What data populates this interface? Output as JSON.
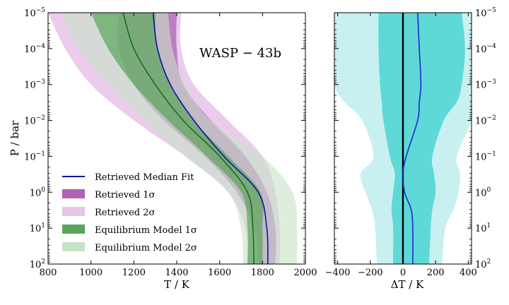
{
  "chart_data": [
    {
      "type": "area",
      "annotation": "WASP − 43b",
      "xlabel": "T / K",
      "ylabel": "P / bar",
      "xlim": [
        800,
        2000
      ],
      "ylim": [
        100,
        1e-05
      ],
      "y_scale": "log",
      "x_ticks": [
        "800",
        "1000",
        "1200",
        "1400",
        "1600",
        "1800",
        "2000"
      ],
      "y_ticks": [
        {
          "base": "10",
          "exp": "−5"
        },
        {
          "base": "10",
          "exp": "−4"
        },
        {
          "base": "10",
          "exp": "−3"
        },
        {
          "base": "10",
          "exp": "−2"
        },
        {
          "base": "10",
          "exp": "−1"
        },
        {
          "base": "10",
          "exp": "0"
        },
        {
          "base": "10",
          "exp": "1"
        },
        {
          "base": "10",
          "exp": "2"
        }
      ],
      "legend_position": "lower-left",
      "pressure": [
        1e-05,
        0.0001,
        0.001,
        0.01,
        0.1,
        1,
        10,
        100
      ],
      "series": [
        {
          "name": "Retrieved Median Fit",
          "kind": "line",
          "color": "#0b14a8",
          "values": [
            1290,
            1310,
            1370,
            1480,
            1620,
            1780,
            1820,
            1825
          ]
        },
        {
          "name": "Equilibrium Model median",
          "kind": "line",
          "color": "#1a6b1a",
          "values": [
            1150,
            1200,
            1300,
            1430,
            1600,
            1730,
            1755,
            1760
          ]
        },
        {
          "name": "Retrieved 1σ",
          "kind": "band",
          "color": "#b063b4",
          "low": [
            1130,
            1130,
            1200,
            1340,
            1530,
            1680,
            1760,
            1780
          ],
          "high": [
            1400,
            1400,
            1430,
            1560,
            1720,
            1820,
            1860,
            1860
          ]
        },
        {
          "name": "Retrieved 2σ",
          "kind": "band",
          "color": "#e8c3ea",
          "low": [
            800,
            880,
            1000,
            1200,
            1440,
            1640,
            1720,
            1730
          ],
          "high": [
            1420,
            1420,
            1480,
            1640,
            1800,
            1860,
            1880,
            1880
          ]
        },
        {
          "name": "Equilibrium Model 1σ",
          "kind": "band",
          "color": "#5aa55a",
          "low": [
            1000,
            1080,
            1200,
            1360,
            1540,
            1700,
            1730,
            1730
          ],
          "high": [
            1300,
            1310,
            1370,
            1480,
            1640,
            1790,
            1800,
            1800
          ]
        },
        {
          "name": "Equilibrium Model 2σ",
          "kind": "band",
          "color": "#c6e3c6",
          "low": [
            860,
            940,
            1080,
            1250,
            1440,
            1640,
            1700,
            1710
          ],
          "high": [
            1360,
            1380,
            1440,
            1560,
            1800,
            1940,
            1960,
            1960
          ]
        }
      ],
      "legend": [
        {
          "label": "Retrieved Median Fit",
          "kind": "line",
          "color": "#0b14a8"
        },
        {
          "label": "Retrieved 1σ",
          "kind": "patch",
          "color": "#b063b4"
        },
        {
          "label": "Retrieved 2σ",
          "kind": "patch",
          "color": "#e8c3ea"
        },
        {
          "label": "Equilibrium Model 1σ",
          "kind": "patch",
          "color": "#5aa55a"
        },
        {
          "label": "Equilibrium Model 2σ",
          "kind": "patch",
          "color": "#c6e3c6"
        }
      ]
    },
    {
      "type": "area",
      "xlabel": "ΔT / K",
      "xlim": [
        -420,
        420
      ],
      "ylim": [
        100,
        1e-05
      ],
      "y_scale": "log",
      "y_axis_side": "right",
      "x_ticks": [
        {
          "value": -400,
          "label": "−400"
        },
        {
          "value": -200,
          "label": "−200"
        },
        {
          "value": 0,
          "label": "0"
        },
        {
          "value": 200,
          "label": "200"
        },
        {
          "value": 400,
          "label": "400"
        }
      ],
      "y_ticks": [
        {
          "base": "10",
          "exp": "−5"
        },
        {
          "base": "10",
          "exp": "−4"
        },
        {
          "base": "10",
          "exp": "−3"
        },
        {
          "base": "10",
          "exp": "−2"
        },
        {
          "base": "10",
          "exp": "−1"
        },
        {
          "base": "10",
          "exp": "0"
        },
        {
          "base": "10",
          "exp": "1"
        },
        {
          "base": "10",
          "exp": "2"
        }
      ],
      "pressure": [
        1e-05,
        0.0001,
        0.001,
        0.003,
        0.01,
        0.1,
        0.3,
        1,
        3,
        10,
        100
      ],
      "zero_line": 0,
      "series": [
        {
          "name": "median",
          "kind": "line",
          "color": "#1a2cd0",
          "values": [
            90,
            100,
            110,
            100,
            90,
            20,
            0,
            10,
            50,
            60,
            60
          ]
        },
        {
          "name": "1σ",
          "kind": "band",
          "color": "#5fd8d8",
          "low": [
            -150,
            -150,
            -140,
            -130,
            -120,
            -80,
            -50,
            -60,
            -70,
            -60,
            -60
          ],
          "high": [
            360,
            380,
            360,
            330,
            250,
            180,
            190,
            200,
            180,
            170,
            160
          ]
        },
        {
          "name": "2σ",
          "kind": "band",
          "color": "#c9f0f0",
          "low": [
            -420,
            -420,
            -420,
            -360,
            -250,
            -180,
            -260,
            -230,
            -190,
            -170,
            -160
          ],
          "high": [
            420,
            420,
            420,
            420,
            420,
            330,
            350,
            340,
            310,
            260,
            240
          ]
        }
      ]
    }
  ]
}
